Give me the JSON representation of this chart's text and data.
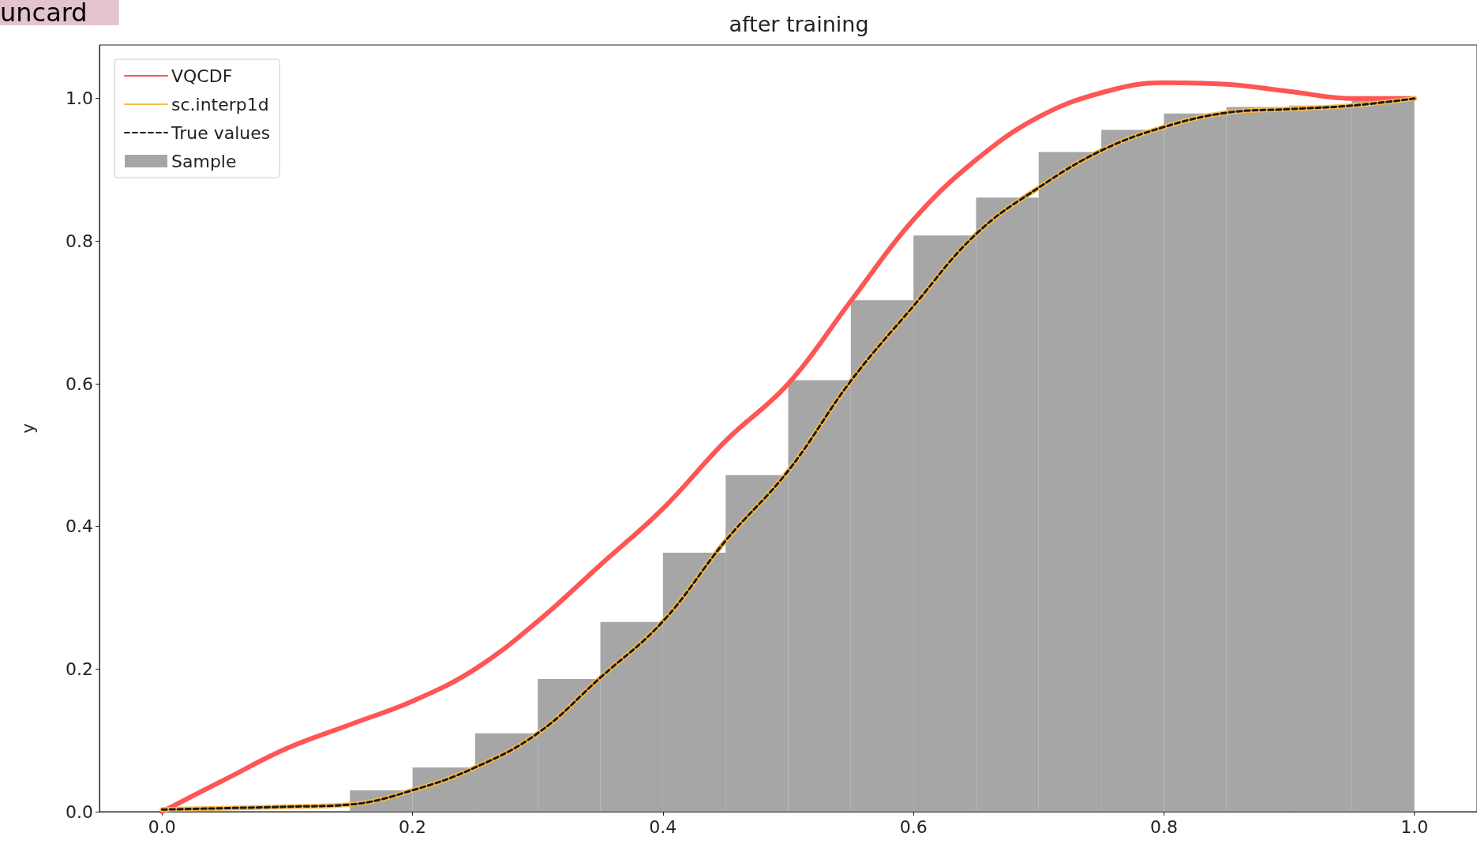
{
  "chart_data": {
    "type": "line",
    "title": "after training",
    "ylabel": "y",
    "xlim": [
      -0.05,
      1.05
    ],
    "ylim": [
      0,
      1.075
    ],
    "xticks": [
      {
        "value": 0,
        "label": "0.0"
      },
      0.2,
      0.4,
      0.6,
      0.8,
      {
        "value": 1,
        "label": "1.0"
      }
    ],
    "yticks": [
      {
        "value": 0,
        "label": "0.0"
      },
      0.2,
      0.4,
      0.6,
      0.8,
      {
        "value": 1,
        "label": "1.0"
      }
    ],
    "grid": false,
    "legend": "top left",
    "marker": "none",
    "annotations": [
      "uncard"
    ],
    "series": [
      {
        "name": "VQCDF",
        "color": "#ff5555",
        "line_style": "solid",
        "x": [
          0,
          0.05,
          0.1,
          0.15,
          0.2,
          0.25,
          0.3,
          0.35,
          0.4,
          0.45,
          0.5,
          0.55,
          0.6,
          0.65,
          0.7,
          0.75,
          0.8,
          0.85,
          0.9,
          0.95,
          1.0
        ],
        "values": [
          0,
          0.045,
          0.089,
          0.122,
          0.155,
          0.2,
          0.267,
          0.346,
          0.425,
          0.52,
          0.6,
          0.716,
          0.83,
          0.914,
          0.974,
          1.008,
          1.022,
          1.02,
          1.01,
          1.0,
          1.0
        ]
      },
      {
        "name": "sc.interp1d",
        "color": "#f9b94a",
        "line_style": "solid",
        "x": [
          0,
          0.1,
          0.15,
          0.2,
          0.25,
          0.3,
          0.35,
          0.4,
          0.45,
          0.5,
          0.55,
          0.6,
          0.65,
          0.7,
          0.75,
          0.8,
          0.85,
          0.9,
          0.95,
          1.0
        ],
        "values": [
          0.003,
          0.007,
          0.01,
          0.03,
          0.062,
          0.11,
          0.188,
          0.267,
          0.38,
          0.478,
          0.604,
          0.709,
          0.81,
          0.875,
          0.927,
          0.96,
          0.98,
          0.985,
          0.99,
          1.0
        ]
      },
      {
        "name": "True values",
        "color": "#1a1a1a",
        "line_style": "dashed",
        "x": [
          0,
          0.1,
          0.15,
          0.2,
          0.25,
          0.3,
          0.35,
          0.4,
          0.45,
          0.5,
          0.55,
          0.6,
          0.65,
          0.7,
          0.75,
          0.8,
          0.85,
          0.9,
          0.95,
          1.0
        ],
        "values": [
          0.003,
          0.007,
          0.01,
          0.03,
          0.062,
          0.11,
          0.188,
          0.267,
          0.38,
          0.478,
          0.604,
          0.709,
          0.81,
          0.875,
          0.927,
          0.96,
          0.98,
          0.985,
          0.99,
          1.0
        ]
      },
      {
        "name": "Sample",
        "type": "histogram",
        "color": "#a6a6a6",
        "bins": [
          0,
          0.05,
          0.1,
          0.15,
          0.2,
          0.25,
          0.3,
          0.35,
          0.4,
          0.45,
          0.5,
          0.55,
          0.6,
          0.65,
          0.7,
          0.75,
          0.8,
          0.85,
          0.9,
          0.95,
          1.0
        ],
        "values": [
          0,
          0,
          0,
          0.03,
          0.062,
          0.11,
          0.186,
          0.266,
          0.363,
          0.472,
          0.605,
          0.717,
          0.808,
          0.861,
          0.925,
          0.956,
          0.979,
          0.988,
          0.99,
          1.0
        ]
      }
    ]
  }
}
